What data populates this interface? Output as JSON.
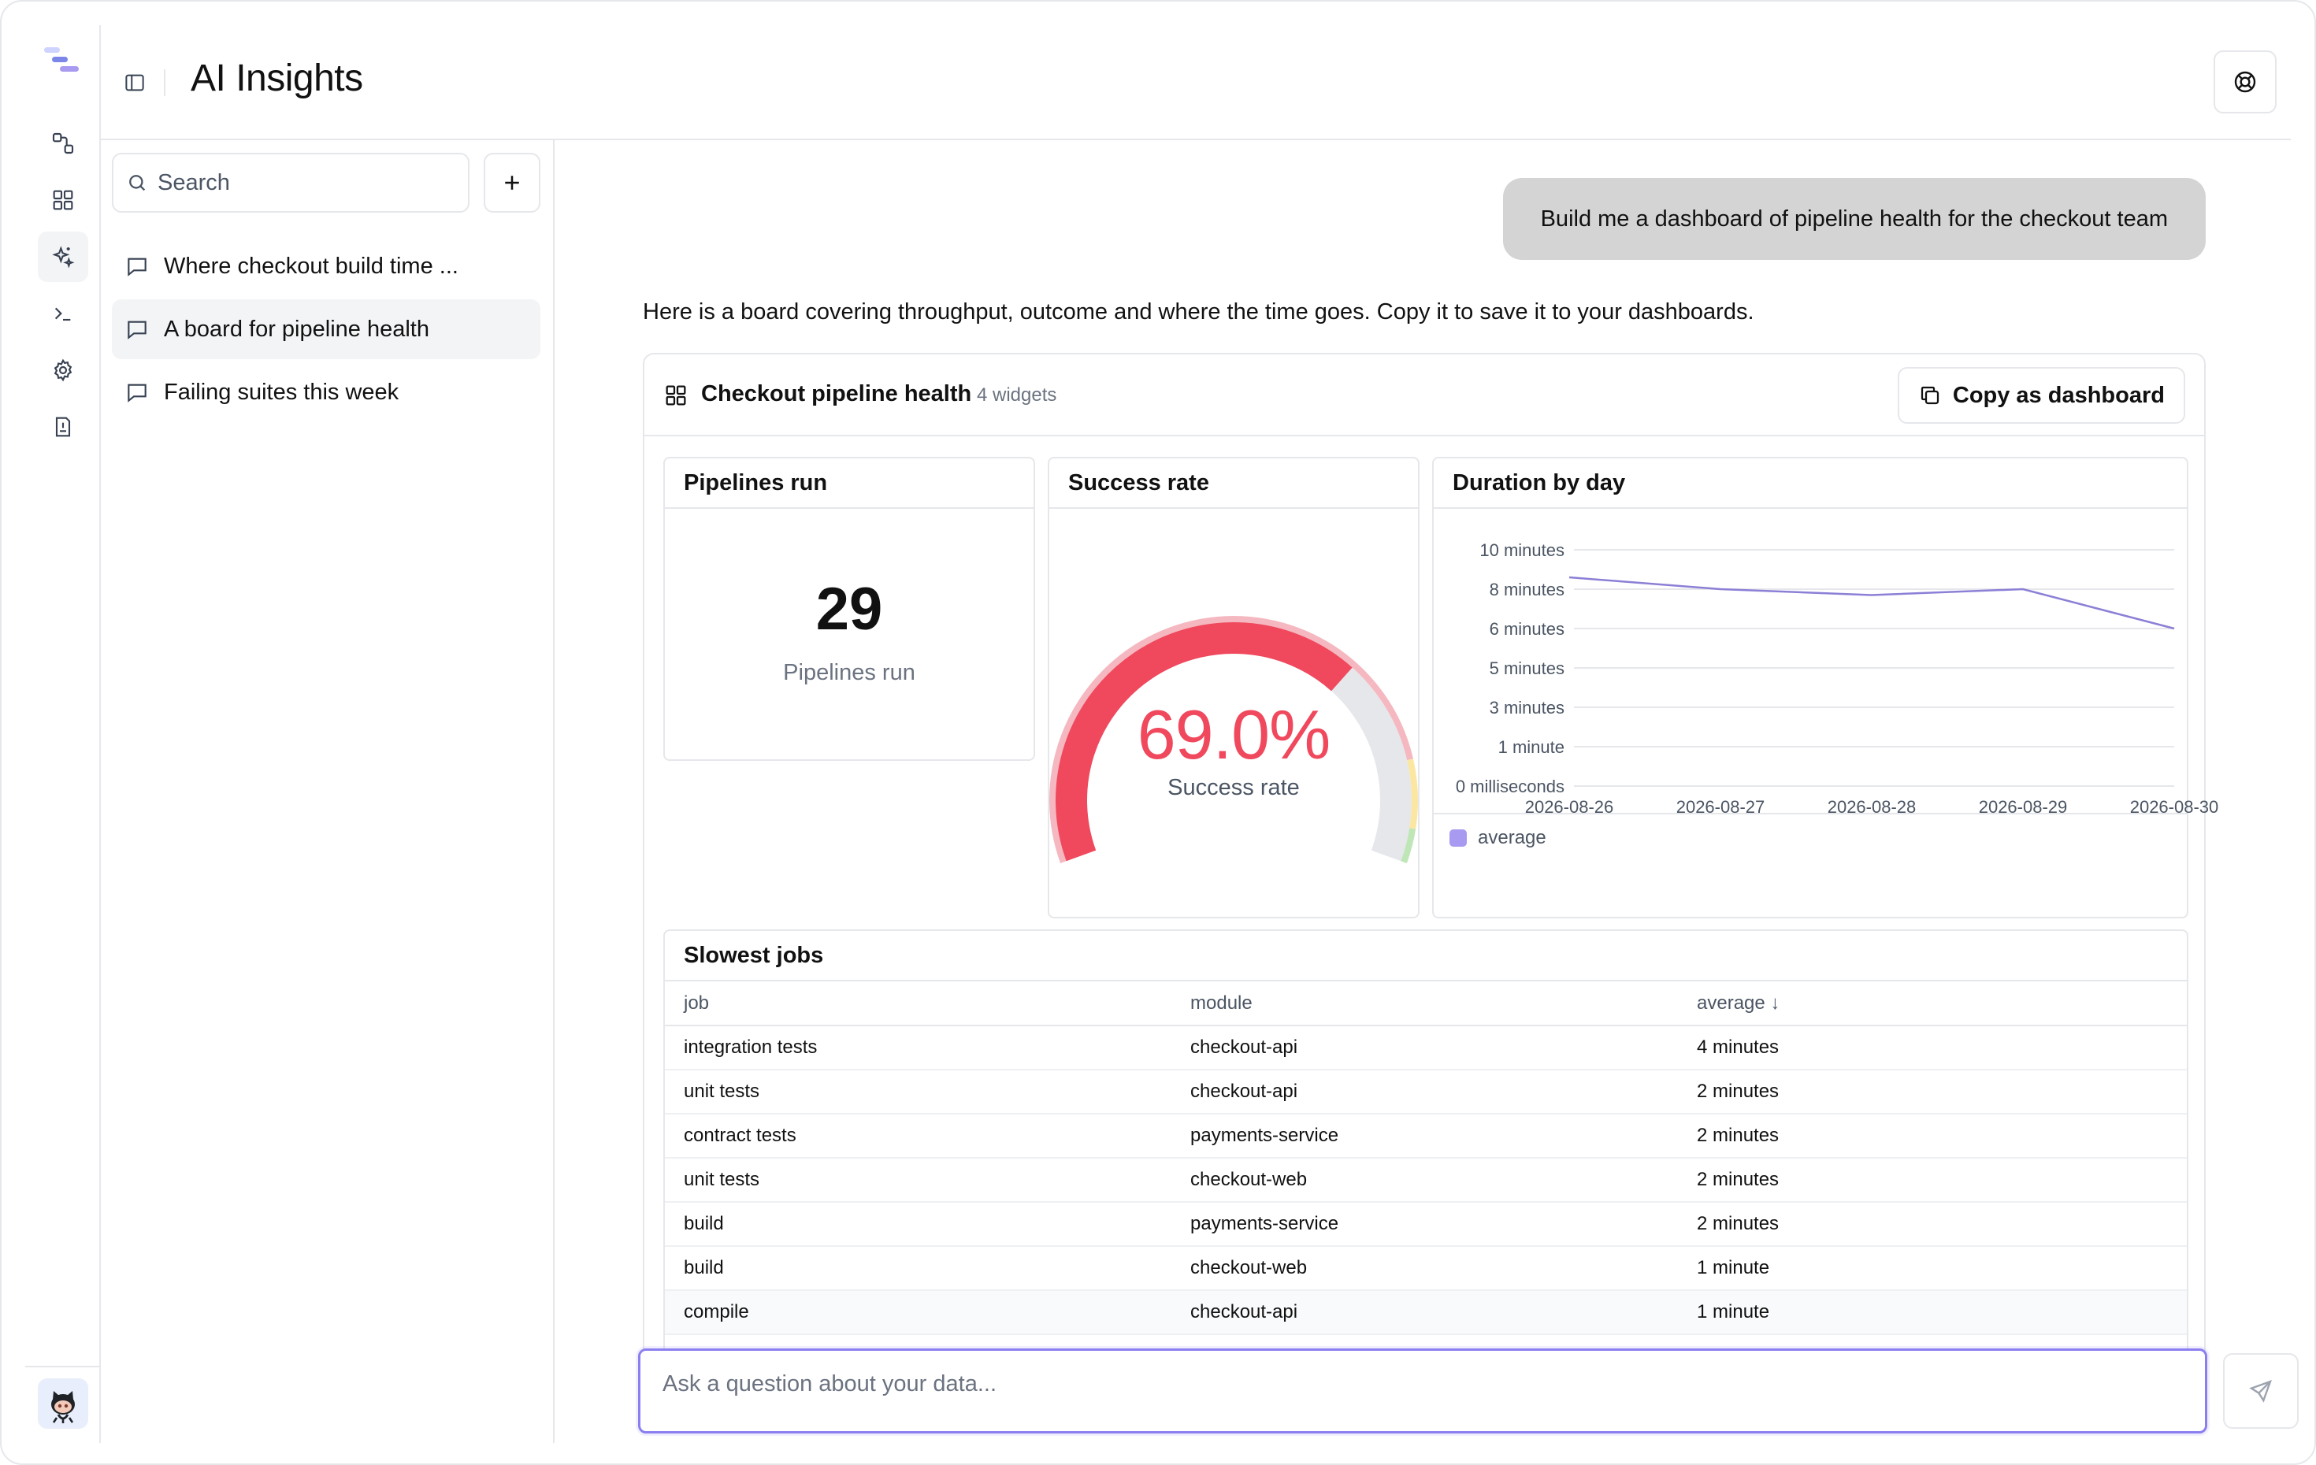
{
  "header": {
    "title": "AI Insights"
  },
  "search": {
    "placeholder": "Search"
  },
  "conversations": [
    {
      "label": "Where checkout build time ...",
      "active": false
    },
    {
      "label": "A board for pipeline health",
      "active": true
    },
    {
      "label": "Failing suites this week",
      "active": false
    }
  ],
  "chat": {
    "user_message": "Build me a dashboard of pipeline health for the checkout team",
    "assistant_message": "Here is a board covering throughput, outcome and where the time goes. Copy it to save it to your dashboards."
  },
  "board": {
    "title": "Checkout pipeline health",
    "count": "4 widgets",
    "copy_label": "Copy as dashboard"
  },
  "widgets": {
    "pipelines_run": {
      "title": "Pipelines run",
      "value": "29",
      "label": "Pipelines run"
    },
    "success_rate": {
      "title": "Success rate",
      "value": "69.0%",
      "label": "Success rate",
      "fraction": 0.69
    },
    "duration": {
      "title": "Duration by day",
      "legend": "average"
    },
    "slowest_jobs": {
      "title": "Slowest jobs",
      "columns": [
        "job",
        "module",
        "average ↓"
      ],
      "rows": [
        [
          "integration tests",
          "checkout-api",
          "4 minutes"
        ],
        [
          "unit tests",
          "checkout-api",
          "2 minutes"
        ],
        [
          "contract tests",
          "payments-service",
          "2 minutes"
        ],
        [
          "unit tests",
          "checkout-web",
          "2 minutes"
        ],
        [
          "build",
          "payments-service",
          "2 minutes"
        ],
        [
          "build",
          "checkout-web",
          "1 minute"
        ],
        [
          "compile",
          "checkout-api",
          "1 minute"
        ]
      ]
    }
  },
  "chart_data": {
    "type": "line",
    "title": "Duration by day",
    "x": [
      "2026-08-26",
      "2026-08-27",
      "2026-08-28",
      "2026-08-29",
      "2026-08-30"
    ],
    "x_tick_labels": [
      "2026-08-26",
      "2026-08-27",
      "2026-08-28",
      "2026-08-29",
      "2026-08-30"
    ],
    "y_tick_labels": [
      "10 minutes",
      "8 minutes",
      "6 minutes",
      "5 minutes",
      "3 minutes",
      "1 minute",
      "0 milliseconds"
    ],
    "series": [
      {
        "name": "average",
        "values": [
          8.6,
          8.0,
          7.7,
          8.0,
          6.0
        ],
        "unit": "minutes"
      }
    ],
    "ylim": [
      0,
      10
    ],
    "grid": true,
    "legend_position": "bottom-left",
    "series_color": "#8b7fd6"
  },
  "ask": {
    "placeholder": "Ask a question about your data..."
  },
  "colors": {
    "accent": "#8b7ff0",
    "danger": "#f0485c",
    "gauge_track": "#e5e7eb"
  }
}
